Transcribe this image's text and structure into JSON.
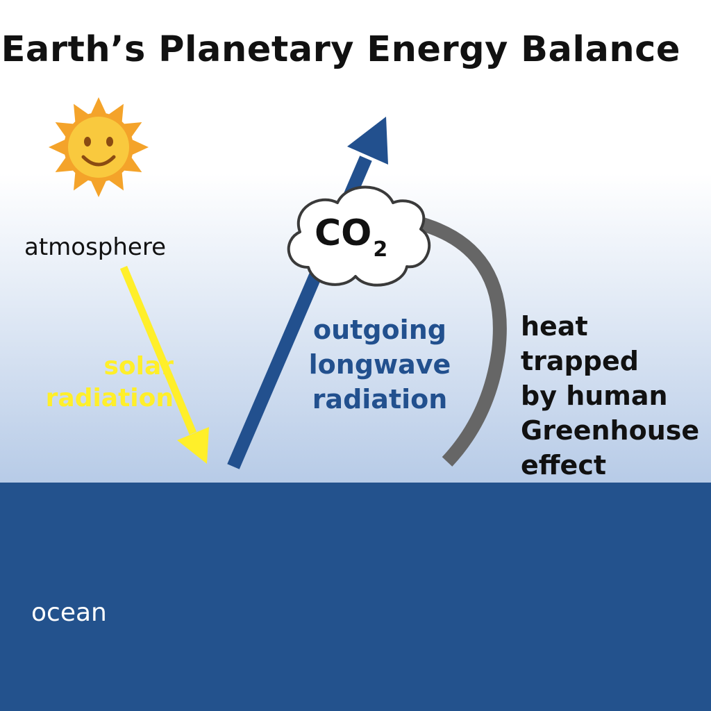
{
  "title": "Earth’s Planetary Energy Balance",
  "labels": {
    "atmosphere": "atmosphere",
    "ocean": "ocean",
    "solar_line1": "solar",
    "solar_line2": "radiation",
    "outgoing_line1": "outgoing",
    "outgoing_line2": "longwave",
    "outgoing_line3": "radiation",
    "trapped_line1": "heat trapped",
    "trapped_line2": "by human",
    "trapped_line3": "Greenhouse",
    "trapped_line4": "effect",
    "co2_main": "CO",
    "co2_sub": "2"
  },
  "icons": {
    "sun": "smiling-sun-icon",
    "cloud": "co2-cloud-icon"
  },
  "colors": {
    "sky_top": "#ffffff",
    "sky_bottom": "#b7cbe7",
    "ocean": "#23528d",
    "solar_arrow": "#ffef2a",
    "outgoing_arrow": "#22508e",
    "trapped_arrow": "#666666",
    "sun_body": "#f7c43a",
    "sun_rays": "#f4a32a"
  }
}
